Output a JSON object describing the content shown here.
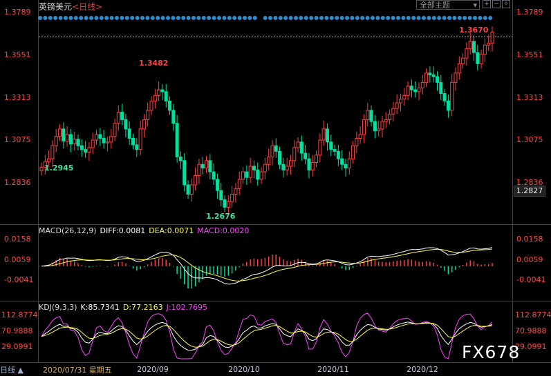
{
  "header": {
    "symbol": "英镑美元",
    "timeframe": "<日线>",
    "main_indicator_button": "全部主题"
  },
  "price_panel": {
    "axis_ticks": [
      "1.3789",
      "1.3551",
      "1.3313",
      "1.3075",
      "1.2836"
    ],
    "current_price_label": "1.2827",
    "annotations": {
      "high": "1.3482",
      "low_start": "1.2945",
      "low": "1.2676",
      "latest_high": "1.3670"
    }
  },
  "macd_panel": {
    "name": "MACD(26,12,9)",
    "diff": "DIFF:0.0081",
    "dea": "DEA:0.0071",
    "macd": "MACD:0.0020",
    "axis_ticks": [
      "0.0158",
      "0.0059",
      "-0.0041"
    ]
  },
  "kdj_panel": {
    "name": "KDJ(9,3,3)",
    "k": "K:85.7341",
    "d": "D:77.2163",
    "j": "J:102.7695",
    "axis_ticks": [
      "112.8774",
      "70.9888",
      "29.0991"
    ]
  },
  "footer": {
    "left_label": "日线",
    "cursor_date": "2020/07/31 星期五",
    "x_labels": [
      "2020/09",
      "2020/10",
      "2020/11",
      "2020/12"
    ]
  },
  "watermark": "FX678",
  "colors": {
    "up": "#ff4040",
    "down": "#00e0a0",
    "diff_line": "#ffffff",
    "dea_line": "#ffff40",
    "j_line": "#ff40ff",
    "dot": "#2f8ecf"
  },
  "chart_data": {
    "type": "candlestick",
    "ylim": [
      1.265,
      1.379
    ],
    "closes": [
      1.2945,
      1.2975,
      1.299,
      1.306,
      1.311,
      1.315,
      1.3085,
      1.312,
      1.307,
      1.3095,
      1.306,
      1.304,
      1.3025,
      1.305,
      1.309,
      1.312,
      1.31,
      1.3075,
      1.308,
      1.311,
      1.318,
      1.324,
      1.32,
      1.315,
      1.31,
      1.3065,
      1.304,
      1.315,
      1.32,
      1.325,
      1.33,
      1.333,
      1.336,
      1.335,
      1.33,
      1.325,
      1.318,
      1.3,
      1.298,
      1.285,
      1.28,
      1.285,
      1.29,
      1.296,
      1.294,
      1.298,
      1.292,
      1.288,
      1.282,
      1.277,
      1.273,
      1.276,
      1.28,
      1.283,
      1.288,
      1.292,
      1.289,
      1.295,
      1.293,
      1.288,
      1.292,
      1.296,
      1.3,
      1.306,
      1.303,
      1.296,
      1.293,
      1.295,
      1.298,
      1.305,
      1.308,
      1.302,
      1.299,
      1.293,
      1.297,
      1.301,
      1.309,
      1.315,
      1.308,
      1.304,
      1.303,
      1.299,
      1.296,
      1.294,
      1.299,
      1.306,
      1.31,
      1.312,
      1.32,
      1.325,
      1.319,
      1.314,
      1.315,
      1.319,
      1.32,
      1.323,
      1.326,
      1.329,
      1.331,
      1.333,
      1.338,
      1.336,
      1.335,
      1.337,
      1.34,
      1.345,
      1.344,
      1.343,
      1.34,
      1.334,
      1.33,
      1.325,
      1.34,
      1.345,
      1.35,
      1.353,
      1.358,
      1.362,
      1.356,
      1.35,
      1.355,
      1.36,
      1.361,
      1.367
    ],
    "annotation_values": {
      "high": 1.3482,
      "low": 1.2676,
      "start": 1.2945,
      "latest_high": 1.367
    }
  }
}
